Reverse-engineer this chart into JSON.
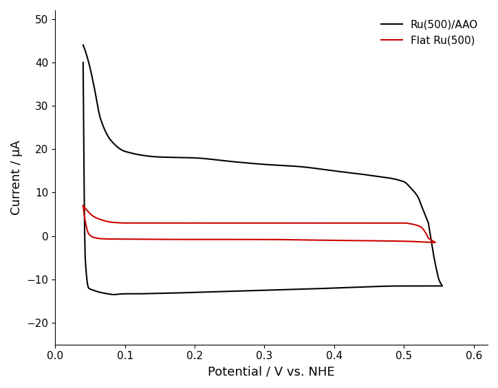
{
  "title": "",
  "xlabel": "Potential / V vs. NHE",
  "ylabel": "Current / μA",
  "xlim": [
    0.0,
    0.62
  ],
  "ylim": [
    -25,
    52
  ],
  "xticks": [
    0.0,
    0.1,
    0.2,
    0.3,
    0.4,
    0.5,
    0.6
  ],
  "yticks": [
    -20,
    -10,
    0,
    10,
    20,
    30,
    40,
    50
  ],
  "legend_entries": [
    "Ru(500)/AAO",
    "Flat Ru(500)"
  ],
  "black_color": "#000000",
  "red_color": "#cc0000",
  "background_color": "#ffffff",
  "linewidth": 1.5,
  "legend_fontsize": 11,
  "axis_fontsize": 13,
  "tick_fontsize": 11
}
